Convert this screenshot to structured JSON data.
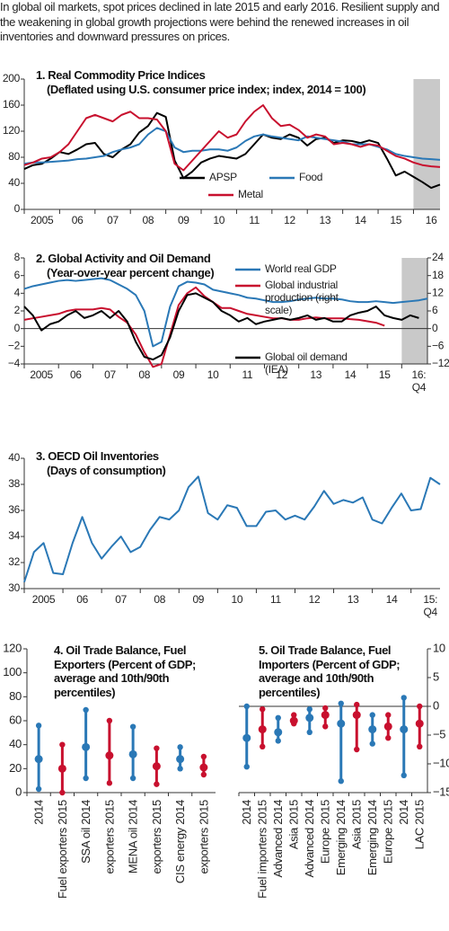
{
  "intro": "In global oil markets, spot prices declined in late 2015 and early 2016. Resilient supply and the weakening in global growth projections were behind the renewed increases in oil inventories and downward pressures on prices.",
  "chart_data": [
    {
      "type": "line",
      "title": "1. Real Commodity Price Indices",
      "subtitle": "(Deflated using U.S. consumer price index; index, 2014 = 100)",
      "xlim": [
        2005,
        2016.75
      ],
      "ylim": [
        0,
        200
      ],
      "yticks": [
        0,
        40,
        80,
        120,
        160,
        200
      ],
      "xticks": [
        {
          "value": 2005,
          "label": "2005"
        },
        {
          "value": 2006,
          "label": "06"
        },
        {
          "value": 2007,
          "label": "07"
        },
        {
          "value": 2008,
          "label": "08"
        },
        {
          "value": 2009,
          "label": "09"
        },
        {
          "value": 2010,
          "label": "10"
        },
        {
          "value": 2011,
          "label": "11"
        },
        {
          "value": 2012,
          "label": "12"
        },
        {
          "value": 2013,
          "label": "13"
        },
        {
          "value": 2014,
          "label": "14"
        },
        {
          "value": 2015,
          "label": "15"
        },
        {
          "value": 2016,
          "label": "16"
        }
      ],
      "shade": [
        2016,
        2016.75
      ],
      "x": [
        2005,
        2005.25,
        2005.5,
        2005.75,
        2006,
        2006.25,
        2006.5,
        2006.75,
        2007,
        2007.25,
        2007.5,
        2007.75,
        2008,
        2008.25,
        2008.5,
        2008.75,
        2009,
        2009.25,
        2009.5,
        2009.75,
        2010,
        2010.25,
        2010.5,
        2010.75,
        2011,
        2011.25,
        2011.5,
        2011.75,
        2012,
        2012.25,
        2012.5,
        2012.75,
        2013,
        2013.25,
        2013.5,
        2013.75,
        2014,
        2014.25,
        2014.5,
        2014.75,
        2015,
        2015.25,
        2015.5,
        2015.75,
        2016,
        2016.25,
        2016.5,
        2016.75
      ],
      "series": [
        {
          "name": "APSP",
          "color": "#000000",
          "values": [
            62,
            68,
            70,
            78,
            88,
            85,
            92,
            100,
            102,
            85,
            80,
            92,
            100,
            118,
            128,
            148,
            142,
            75,
            48,
            58,
            72,
            78,
            82,
            80,
            78,
            85,
            100,
            115,
            110,
            108,
            115,
            110,
            98,
            108,
            110,
            102,
            106,
            105,
            102,
            106,
            102,
            78,
            52,
            58,
            50,
            42,
            33,
            38
          ]
        },
        {
          "name": "Food",
          "color": "#2a78b6",
          "values": [
            70,
            72,
            72,
            73,
            74,
            75,
            77,
            78,
            80,
            82,
            88,
            92,
            95,
            100,
            115,
            125,
            120,
            95,
            88,
            90,
            90,
            92,
            92,
            90,
            95,
            105,
            112,
            115,
            112,
            110,
            108,
            106,
            112,
            110,
            108,
            106,
            104,
            100,
            100,
            100,
            96,
            92,
            85,
            82,
            80,
            78,
            77,
            76
          ]
        },
        {
          "name": "Metal",
          "color": "#c8102e",
          "values": [
            68,
            72,
            78,
            80,
            88,
            100,
            120,
            140,
            145,
            140,
            135,
            145,
            150,
            140,
            140,
            138,
            120,
            70,
            60,
            75,
            90,
            105,
            120,
            110,
            115,
            135,
            150,
            160,
            140,
            128,
            130,
            122,
            110,
            115,
            112,
            100,
            102,
            100,
            96,
            100,
            98,
            90,
            82,
            78,
            72,
            68,
            66,
            65
          ]
        }
      ]
    },
    {
      "type": "line",
      "title": "2. Global Activity and Oil Demand",
      "subtitle": "(Year-over-year percent change)",
      "xlim": [
        2005,
        2016.75
      ],
      "ylim": [
        -4,
        8
      ],
      "yticks": [
        {
          "value": -4,
          "label": "−4"
        },
        {
          "value": -2,
          "label": "−2"
        },
        0,
        2,
        4,
        6,
        8
      ],
      "y2lim": [
        -12,
        24
      ],
      "y2ticks": [
        {
          "value": -12,
          "label": "−12"
        },
        {
          "value": -6,
          "label": "−6"
        },
        0,
        6,
        12,
        18,
        24
      ],
      "xticks": [
        {
          "value": 2005,
          "label": "2005"
        },
        {
          "value": 2006,
          "label": "06"
        },
        {
          "value": 2007,
          "label": "07"
        },
        {
          "value": 2008,
          "label": "08"
        },
        {
          "value": 2009,
          "label": "09"
        },
        {
          "value": 2010,
          "label": "10"
        },
        {
          "value": 2011,
          "label": "11"
        },
        {
          "value": 2012,
          "label": "12"
        },
        {
          "value": 2013,
          "label": "13"
        },
        {
          "value": 2014,
          "label": "14"
        },
        {
          "value": 2015,
          "label": "15"
        },
        {
          "value": 2016,
          "label": "16:\nQ4"
        }
      ],
      "shade": [
        2016,
        2016.75
      ],
      "x": [
        2005,
        2005.25,
        2005.5,
        2005.75,
        2006,
        2006.25,
        2006.5,
        2006.75,
        2007,
        2007.25,
        2007.5,
        2007.75,
        2008,
        2008.25,
        2008.5,
        2008.75,
        2009,
        2009.25,
        2009.5,
        2009.75,
        2010,
        2010.25,
        2010.5,
        2010.75,
        2011,
        2011.25,
        2011.5,
        2011.75,
        2012,
        2012.25,
        2012.5,
        2012.75,
        2013,
        2013.25,
        2013.5,
        2013.75,
        2014,
        2014.25,
        2014.5,
        2014.75,
        2015,
        2015.25,
        2015.5,
        2015.75,
        2016,
        2016.25,
        2016.5,
        2016.75
      ],
      "series": [
        {
          "name": "World real GDP",
          "color": "#2a78b6",
          "values": [
            4.5,
            4.8,
            5.0,
            5.2,
            5.4,
            5.5,
            5.4,
            5.5,
            5.6,
            5.7,
            5.5,
            5.0,
            4.5,
            3.8,
            2.0,
            -2.0,
            -1.5,
            2.5,
            4.8,
            5.3,
            5.2,
            5.0,
            4.4,
            4.2,
            4.0,
            3.8,
            3.5,
            3.4,
            3.2,
            3.0,
            3.0,
            3.1,
            3.3,
            3.4,
            3.5,
            3.4,
            3.4,
            3.3,
            3.1,
            3.0,
            3.0,
            3.1,
            3.0,
            2.9,
            3.0,
            3.1,
            3.2,
            3.4
          ]
        },
        {
          "name": "Global industrial production (right scale)",
          "color": "#c8102e",
          "axis": "y2",
          "values": [
            3,
            3.5,
            4,
            4.5,
            5,
            6,
            6.5,
            6.5,
            6.5,
            7,
            6.5,
            4,
            2,
            -2,
            -8,
            -13,
            -12,
            -2,
            8,
            12,
            14,
            11,
            9,
            7,
            7,
            6,
            5,
            4.5,
            4,
            3.5,
            3.5,
            3,
            3,
            3.5,
            3.8,
            3.5,
            3.5,
            3.5,
            3.2,
            3,
            2.5,
            2,
            1,
            null,
            null,
            null,
            null,
            null
          ]
        },
        {
          "name": "Global oil demand (IEA)",
          "color": "#000000",
          "values": [
            2.5,
            1.5,
            -0.2,
            0.5,
            0.8,
            1.5,
            2.0,
            1.2,
            1.5,
            2.0,
            1.2,
            2.0,
            0.8,
            -1.5,
            -3.2,
            -3.5,
            -3.0,
            -1.0,
            2.0,
            3.8,
            4.0,
            3.5,
            3.0,
            2.0,
            1.5,
            0.8,
            1.2,
            0.5,
            0.8,
            1.0,
            1.2,
            1.0,
            1.2,
            1.5,
            1.0,
            1.2,
            0.8,
            0.8,
            1.5,
            1.8,
            2.0,
            2.5,
            1.5,
            1.2,
            1.0,
            1.5,
            1.2,
            null
          ]
        }
      ]
    },
    {
      "type": "line",
      "title": "3. OECD Oil Inventories",
      "subtitle": "(Days of consumption)",
      "xlim": [
        2005,
        2015.75
      ],
      "ylim": [
        30,
        40
      ],
      "yticks": [
        30,
        32,
        34,
        36,
        38,
        40
      ],
      "xticks": [
        {
          "value": 2005,
          "label": "2005"
        },
        {
          "value": 2006,
          "label": "06"
        },
        {
          "value": 2007,
          "label": "07"
        },
        {
          "value": 2008,
          "label": "08"
        },
        {
          "value": 2009,
          "label": "09"
        },
        {
          "value": 2010,
          "label": "10"
        },
        {
          "value": 2011,
          "label": "11"
        },
        {
          "value": 2012,
          "label": "12"
        },
        {
          "value": 2013,
          "label": "13"
        },
        {
          "value": 2014,
          "label": "14"
        },
        {
          "value": 2015,
          "label": "15:\nQ4"
        }
      ],
      "x": [
        2005,
        2005.25,
        2005.5,
        2005.75,
        2006,
        2006.25,
        2006.5,
        2006.75,
        2007,
        2007.25,
        2007.5,
        2007.75,
        2008,
        2008.25,
        2008.5,
        2008.75,
        2009,
        2009.25,
        2009.5,
        2009.75,
        2010,
        2010.25,
        2010.5,
        2010.75,
        2011,
        2011.25,
        2011.5,
        2011.75,
        2012,
        2012.25,
        2012.5,
        2012.75,
        2013,
        2013.25,
        2013.5,
        2013.75,
        2014,
        2014.25,
        2014.5,
        2014.75,
        2015,
        2015.25,
        2015.5,
        2015.75
      ],
      "series": [
        {
          "color": "#2a78b6",
          "values": [
            30.5,
            32.8,
            33.5,
            31.2,
            31.1,
            33.5,
            35.5,
            33.5,
            32.3,
            33.2,
            34.0,
            32.8,
            33.2,
            34.5,
            35.5,
            35.3,
            36.0,
            37.8,
            38.6,
            35.8,
            35.3,
            36.4,
            36.2,
            34.8,
            34.8,
            35.9,
            36.0,
            35.3,
            35.6,
            35.3,
            36.3,
            37.5,
            36.5,
            36.8,
            36.6,
            37.0,
            35.3,
            35.0,
            36.2,
            37.3,
            36.0,
            36.1,
            38.5,
            38.0
          ]
        }
      ]
    },
    {
      "type": "range",
      "title": "4. Oil Trade Balance, Fuel Exporters (Percent of GDP; average and 10th/90th percentiles)",
      "y_axis": "left",
      "ylim": [
        0,
        120
      ],
      "yticks": [
        0,
        20,
        40,
        60,
        80,
        100,
        120
      ],
      "categories": [
        "2014",
        "Fuel exporters 2015",
        "SSA oil 2014",
        "exporters 2015",
        "MENA oil 2014",
        "exporters 2015",
        "CIS energy 2014",
        "exporters 2015"
      ],
      "colors": [
        "#2a78b6",
        "#c8102e",
        "#2a78b6",
        "#c8102e",
        "#2a78b6",
        "#c8102e",
        "#2a78b6",
        "#c8102e"
      ],
      "low": [
        3,
        0,
        12,
        8,
        12,
        7,
        20,
        15
      ],
      "values": [
        28,
        20,
        38,
        31,
        32,
        22,
        28,
        21
      ],
      "high": [
        56,
        40,
        69,
        60,
        55,
        37,
        38,
        30
      ]
    },
    {
      "type": "range",
      "title": "5. Oil Trade Balance, Fuel Importers (Percent of GDP; average and 10th/90th percentiles)",
      "y_axis": "right",
      "ylim": [
        -15,
        10
      ],
      "yticks": [
        {
          "value": -15,
          "label": "−15"
        },
        {
          "value": -10,
          "label": "−10"
        },
        {
          "value": -5,
          "label": "−5"
        },
        0,
        5,
        10
      ],
      "categories": [
        "2014",
        "Fuel importers 2015",
        "Advanced 2014",
        "Asia 2015",
        "Advanced 2014",
        "Europe 2015",
        "Emerging 2014",
        "Asia 2015",
        "Emerging 2014",
        "Europe 2015",
        "2014",
        "LAC 2015"
      ],
      "colors": [
        "#2a78b6",
        "#c8102e",
        "#2a78b6",
        "#c8102e",
        "#2a78b6",
        "#c8102e",
        "#2a78b6",
        "#c8102e",
        "#2a78b6",
        "#c8102e",
        "#2a78b6",
        "#c8102e"
      ],
      "low": [
        -10.5,
        -7,
        -6,
        -3,
        -4.5,
        -3.5,
        -13,
        -7.5,
        -6.5,
        -5.5,
        -12,
        -7
      ],
      "values": [
        -5.5,
        -4,
        -4.5,
        -2.5,
        -2,
        -1.5,
        -3,
        -1.5,
        -4,
        -3.5,
        -4,
        -3
      ],
      "high": [
        0,
        -0.5,
        -2,
        -1.5,
        -0.5,
        -0.3,
        0.5,
        0.3,
        -1.5,
        -1.5,
        1.5,
        0
      ]
    }
  ]
}
